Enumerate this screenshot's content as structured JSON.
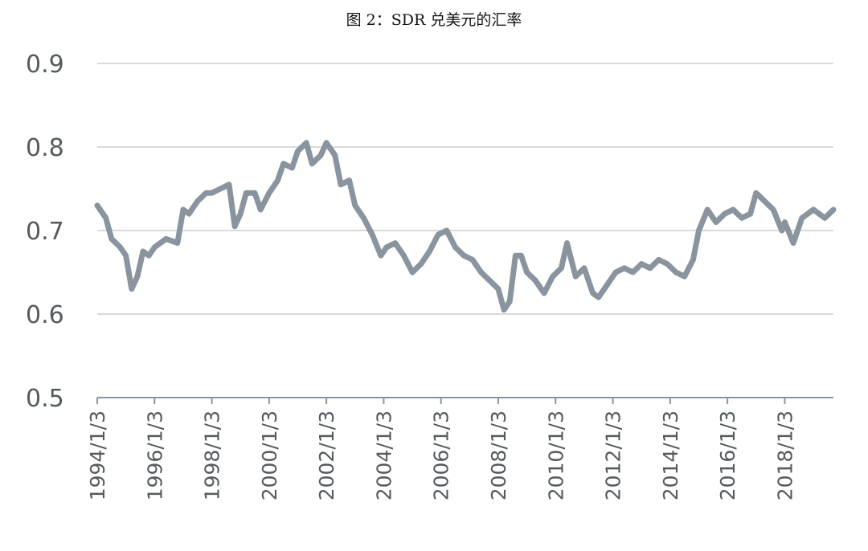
{
  "chart_data": {
    "type": "line",
    "title": "图 2：SDR 兑美元的汇率",
    "xlabel": "",
    "ylabel": "",
    "ylim": [
      0.5,
      0.9
    ],
    "yticks": [
      "0.5",
      "0.6",
      "0.7",
      "0.8",
      "0.9"
    ],
    "xlim": [
      1994.0,
      2019.7
    ],
    "xticks": [
      "1994/1/3",
      "1996/1/3",
      "1998/1/3",
      "2000/1/3",
      "2002/1/3",
      "2004/1/3",
      "2006/1/3",
      "2008/1/3",
      "2010/1/3",
      "2012/1/3",
      "2014/1/3",
      "2016/1/3",
      "2018/1/3"
    ],
    "grid": true,
    "legend": "none",
    "color": "#8a949e",
    "series": [
      {
        "name": "",
        "x": [
          1994.0,
          1994.3,
          1994.5,
          1994.8,
          1995.0,
          1995.2,
          1995.4,
          1995.6,
          1995.8,
          1996.0,
          1996.4,
          1996.8,
          1997.0,
          1997.2,
          1997.5,
          1997.8,
          1998.0,
          1998.3,
          1998.6,
          1998.8,
          1999.0,
          1999.2,
          1999.5,
          1999.7,
          2000.0,
          2000.3,
          2000.5,
          2000.8,
          2001.0,
          2001.3,
          2001.5,
          2001.8,
          2002.0,
          2002.3,
          2002.5,
          2002.8,
          2003.0,
          2003.3,
          2003.6,
          2003.9,
          2004.1,
          2004.4,
          2004.7,
          2005.0,
          2005.3,
          2005.6,
          2005.9,
          2006.2,
          2006.5,
          2006.8,
          2007.1,
          2007.4,
          2007.7,
          2008.0,
          2008.2,
          2008.4,
          2008.6,
          2008.8,
          2009.0,
          2009.3,
          2009.6,
          2009.9,
          2010.2,
          2010.4,
          2010.7,
          2011.0,
          2011.3,
          2011.5,
          2011.8,
          2012.1,
          2012.4,
          2012.7,
          2013.0,
          2013.3,
          2013.6,
          2013.9,
          2014.2,
          2014.5,
          2014.8,
          2015.0,
          2015.3,
          2015.6,
          2015.9,
          2016.2,
          2016.5,
          2016.8,
          2017.0,
          2017.3,
          2017.6,
          2017.9,
          2018.0,
          2018.3,
          2018.6,
          2019.0,
          2019.4,
          2019.7
        ],
        "values": [
          0.73,
          0.715,
          0.69,
          0.68,
          0.67,
          0.63,
          0.645,
          0.675,
          0.67,
          0.68,
          0.69,
          0.685,
          0.725,
          0.72,
          0.735,
          0.745,
          0.745,
          0.75,
          0.755,
          0.705,
          0.72,
          0.745,
          0.745,
          0.725,
          0.745,
          0.76,
          0.78,
          0.775,
          0.795,
          0.805,
          0.78,
          0.79,
          0.805,
          0.79,
          0.755,
          0.76,
          0.73,
          0.715,
          0.695,
          0.67,
          0.68,
          0.685,
          0.67,
          0.65,
          0.66,
          0.675,
          0.695,
          0.7,
          0.68,
          0.67,
          0.665,
          0.65,
          0.64,
          0.63,
          0.605,
          0.615,
          0.67,
          0.67,
          0.65,
          0.64,
          0.625,
          0.645,
          0.655,
          0.685,
          0.645,
          0.655,
          0.625,
          0.62,
          0.635,
          0.65,
          0.655,
          0.65,
          0.66,
          0.655,
          0.665,
          0.66,
          0.65,
          0.645,
          0.665,
          0.7,
          0.725,
          0.71,
          0.72,
          0.725,
          0.715,
          0.72,
          0.745,
          0.735,
          0.725,
          0.7,
          0.71,
          0.685,
          0.715,
          0.725,
          0.715,
          0.725
        ]
      }
    ]
  }
}
